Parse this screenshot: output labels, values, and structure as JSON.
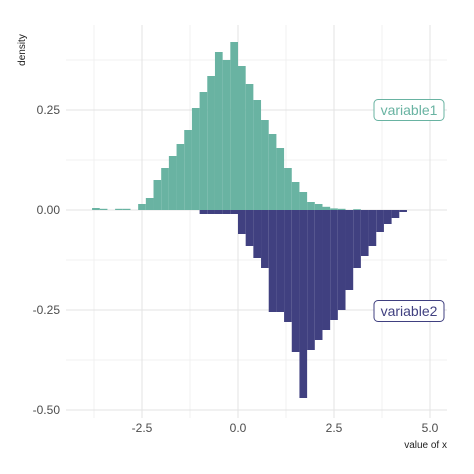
{
  "chart_data": {
    "type": "bar",
    "title": "",
    "xlabel": "value of x",
    "ylabel": "density",
    "xlim": [
      -4.2,
      5.3
    ],
    "ylim": [
      -0.5,
      0.46
    ],
    "grid": true,
    "legend": "none",
    "x_ticks": [
      {
        "value": -2.5,
        "label": "-2.5"
      },
      {
        "value": 0.0,
        "label": "0.0"
      },
      {
        "value": 2.5,
        "label": "2.5"
      },
      {
        "value": 5.0,
        "label": "5.0"
      }
    ],
    "y_ticks": [
      {
        "value": 0.25,
        "label": "0.25"
      },
      {
        "value": 0.0,
        "label": "0.00"
      },
      {
        "value": -0.25,
        "label": "-0.25"
      },
      {
        "value": -0.5,
        "label": "-0.50"
      }
    ],
    "bin_width": 0.2,
    "series": [
      {
        "name": "variable1",
        "color": "#69b3a2",
        "bin_starts": [
          -3.8,
          -3.6,
          -3.4,
          -3.2,
          -3.0,
          -2.8,
          -2.6,
          -2.4,
          -2.2,
          -2.0,
          -1.8,
          -1.6,
          -1.4,
          -1.2,
          -1.0,
          -0.8,
          -0.6,
          -0.4,
          -0.2,
          0.0,
          0.2,
          0.4,
          0.6,
          0.8,
          1.0,
          1.2,
          1.4,
          1.6,
          1.8,
          2.0,
          2.2,
          2.4,
          2.6,
          2.8,
          3.0
        ],
        "values": [
          0.005,
          0.003,
          0.0,
          0.003,
          0.003,
          0.0,
          0.015,
          0.03,
          0.075,
          0.105,
          0.135,
          0.165,
          0.2,
          0.255,
          0.295,
          0.335,
          0.395,
          0.375,
          0.42,
          0.36,
          0.315,
          0.275,
          0.225,
          0.19,
          0.155,
          0.105,
          0.07,
          0.045,
          0.02,
          0.015,
          0.008,
          0.004,
          0.003,
          0.0,
          0.002
        ]
      },
      {
        "name": "variable2",
        "color": "#404080",
        "bin_starts": [
          -1.0,
          -0.8,
          -0.6,
          -0.4,
          -0.2,
          0.0,
          0.2,
          0.4,
          0.6,
          0.8,
          1.0,
          1.2,
          1.4,
          1.6,
          1.8,
          2.0,
          2.2,
          2.4,
          2.6,
          2.8,
          3.0,
          3.2,
          3.4,
          3.6,
          3.8,
          4.0,
          4.2
        ],
        "values": [
          -0.01,
          -0.01,
          -0.01,
          -0.01,
          -0.01,
          -0.06,
          -0.09,
          -0.12,
          -0.145,
          -0.255,
          -0.255,
          -0.28,
          -0.355,
          -0.47,
          -0.35,
          -0.325,
          -0.3,
          -0.275,
          -0.25,
          -0.2,
          -0.145,
          -0.115,
          -0.09,
          -0.055,
          -0.035,
          -0.02,
          -0.005
        ]
      }
    ]
  }
}
